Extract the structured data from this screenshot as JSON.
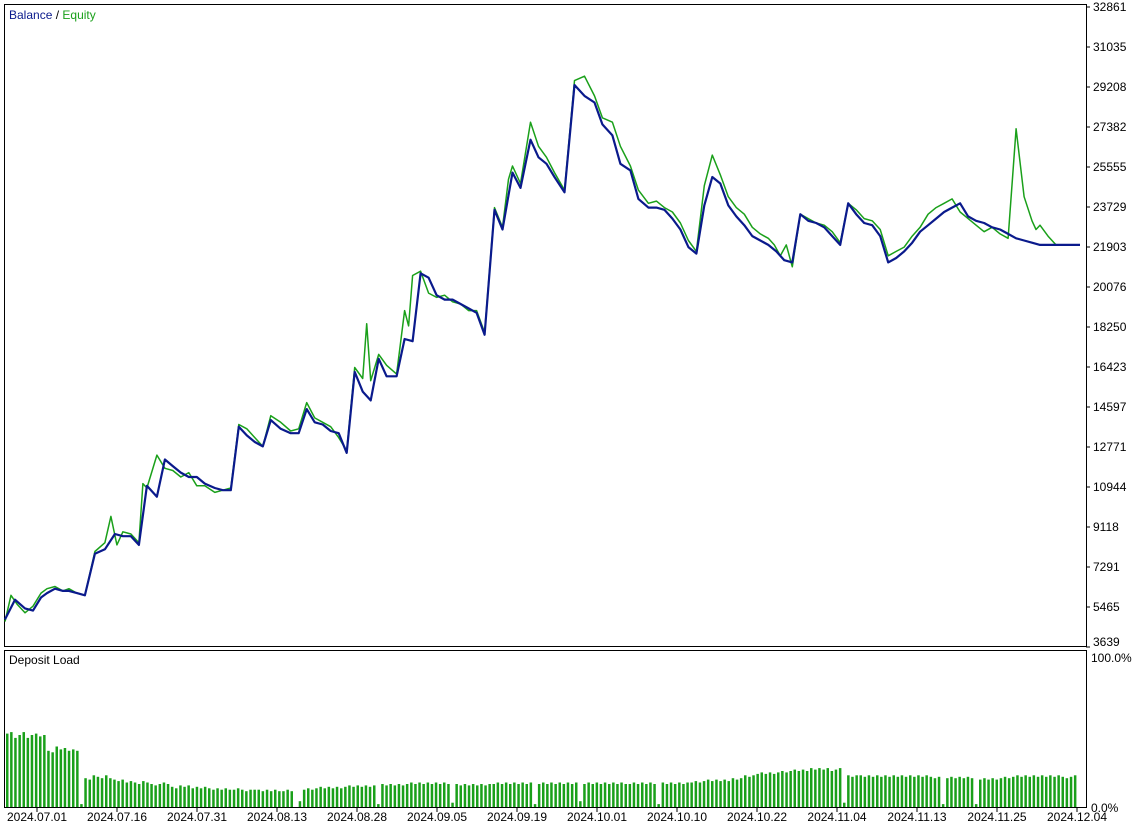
{
  "legend": {
    "balance_label": "Balance",
    "separator": " / ",
    "equity_label": "Equity"
  },
  "colors": {
    "balance": "#0a1a8c",
    "equity": "#1aa01a",
    "deposit_bars": "#1aa01a",
    "frame": "#000000",
    "text": "#000000",
    "background": "#ffffff"
  },
  "main_chart": {
    "y_ticks": [
      "32861",
      "31035",
      "29208",
      "27382",
      "25555",
      "23729",
      "21903",
      "20076",
      "18250",
      "16423",
      "14597",
      "12771",
      "10944",
      "9118",
      "7291",
      "5465",
      "3639"
    ],
    "ylim": [
      3639,
      32861
    ]
  },
  "deposit_panel": {
    "title": "Deposit Load",
    "y_ticks": [
      "100.0%",
      "0.0%"
    ]
  },
  "x_ticks": [
    "2024.07.01",
    "2024.07.16",
    "2024.07.31",
    "2024.08.13",
    "2024.08.28",
    "2024.09.05",
    "2024.09.19",
    "2024.10.01",
    "2024.10.10",
    "2024.10.22",
    "2024.11.04",
    "2024.11.13",
    "2024.11.25",
    "2024.12.04"
  ],
  "chart_data": [
    {
      "type": "line",
      "title": "",
      "xlabel": "",
      "ylabel": "",
      "ylim": [
        3639,
        32861
      ],
      "grid": false,
      "legend_placement": "top-left",
      "x_index_range": [
        0,
        1076
      ],
      "series": [
        {
          "name": "Balance",
          "x": [
            0,
            10,
            20,
            28,
            36,
            42,
            50,
            58,
            64,
            72,
            80,
            90,
            100,
            110,
            118,
            126,
            134,
            142,
            152,
            160,
            168,
            176,
            184,
            192,
            200,
            210,
            218,
            226,
            234,
            242,
            250,
            258,
            266,
            276,
            286,
            294,
            302,
            310,
            318,
            326,
            334,
            342,
            350,
            358,
            366,
            374,
            382,
            392,
            400,
            408,
            416,
            424,
            432,
            440,
            448,
            456,
            464,
            472,
            480,
            490,
            498,
            508,
            516,
            526,
            534,
            542,
            550,
            560,
            570,
            580,
            590,
            598,
            608,
            616,
            626,
            634,
            644,
            652,
            660,
            668,
            676,
            684,
            692,
            700,
            708,
            716,
            724,
            732,
            740,
            748,
            756,
            764,
            772,
            780,
            788,
            796,
            804,
            812,
            820,
            828,
            836,
            844,
            852,
            860,
            868,
            876,
            884,
            892,
            900,
            908,
            916,
            924,
            932,
            940,
            948,
            956,
            964,
            972,
            980,
            988,
            996,
            1004,
            1012,
            1020,
            1028,
            1036,
            1044,
            1052,
            1060,
            1068,
            1076
          ],
          "values": [
            4900,
            5800,
            5400,
            5300,
            5900,
            6100,
            6300,
            6200,
            6200,
            6100,
            6000,
            7900,
            8100,
            8800,
            8700,
            8700,
            8300,
            11000,
            10500,
            12200,
            11900,
            11600,
            11400,
            11400,
            11100,
            10900,
            10800,
            10800,
            13700,
            13300,
            13000,
            12800,
            14000,
            13600,
            13400,
            13400,
            14500,
            13900,
            13800,
            13500,
            13400,
            12500,
            16200,
            15300,
            14900,
            16800,
            16000,
            16000,
            17700,
            17600,
            20700,
            20500,
            19700,
            19500,
            19500,
            19300,
            19100,
            18900,
            17900,
            23600,
            22700,
            25300,
            24600,
            26800,
            26000,
            25700,
            25100,
            24400,
            29300,
            28800,
            28500,
            27500,
            27000,
            25700,
            25400,
            24100,
            23700,
            23700,
            23600,
            23200,
            22700,
            21900,
            21600,
            23800,
            25100,
            24800,
            23800,
            23300,
            22900,
            22400,
            22200,
            22000,
            21700,
            21300,
            21200,
            23400,
            23100,
            23000,
            22800,
            22400,
            22000,
            23900,
            23400,
            23000,
            22900,
            22400,
            21200,
            21400,
            21700,
            22100,
            22600,
            22900,
            23200,
            23500,
            23700,
            23900,
            23300,
            23100,
            23000,
            22800,
            22700,
            22500,
            22300,
            22200,
            22100,
            22000,
            22000,
            22000,
            22000,
            22000,
            22000
          ]
        },
        {
          "name": "Equity",
          "x": [
            0,
            6,
            12,
            20,
            28,
            36,
            42,
            50,
            58,
            64,
            72,
            80,
            90,
            100,
            106,
            112,
            118,
            126,
            134,
            138,
            142,
            152,
            160,
            168,
            176,
            184,
            192,
            200,
            210,
            218,
            226,
            234,
            242,
            250,
            258,
            266,
            276,
            286,
            294,
            302,
            310,
            318,
            326,
            334,
            342,
            350,
            358,
            362,
            366,
            374,
            382,
            392,
            400,
            404,
            408,
            416,
            424,
            432,
            440,
            448,
            456,
            464,
            472,
            480,
            490,
            498,
            504,
            508,
            516,
            526,
            534,
            542,
            550,
            560,
            570,
            580,
            590,
            598,
            608,
            616,
            626,
            634,
            644,
            652,
            660,
            668,
            676,
            684,
            692,
            700,
            708,
            716,
            724,
            732,
            740,
            748,
            756,
            764,
            770,
            776,
            782,
            788,
            796,
            804,
            812,
            820,
            828,
            836,
            844,
            852,
            860,
            868,
            876,
            884,
            892,
            900,
            908,
            916,
            924,
            932,
            940,
            948,
            956,
            964,
            972,
            980,
            988,
            996,
            1004,
            1012,
            1020,
            1028,
            1032,
            1036,
            1044,
            1052,
            1060,
            1068,
            1076
          ],
          "values": [
            4800,
            6000,
            5600,
            5200,
            5500,
            6100,
            6300,
            6400,
            6200,
            6300,
            6100,
            6000,
            8000,
            8400,
            9600,
            8300,
            8900,
            8800,
            8400,
            11100,
            10900,
            12400,
            11800,
            11700,
            11400,
            11600,
            11000,
            11000,
            10700,
            10800,
            10900,
            13800,
            13600,
            13200,
            12800,
            14200,
            13900,
            13500,
            13600,
            14800,
            14100,
            13900,
            13700,
            13200,
            12600,
            16400,
            15900,
            18400,
            15800,
            17000,
            16500,
            16100,
            19000,
            18300,
            20600,
            20800,
            19800,
            19600,
            19700,
            19400,
            19300,
            19000,
            19000,
            18000,
            23700,
            22800,
            25000,
            25600,
            24800,
            27600,
            26500,
            26000,
            25300,
            24500,
            29500,
            29700,
            28800,
            27800,
            27600,
            26500,
            25600,
            24500,
            23900,
            24000,
            23700,
            23500,
            23000,
            22200,
            21700,
            24700,
            26100,
            25200,
            24200,
            23700,
            23400,
            22800,
            22500,
            22300,
            22000,
            21500,
            22000,
            21000,
            23400,
            23200,
            23000,
            22900,
            22600,
            22100,
            23900,
            23600,
            23200,
            23100,
            22700,
            21500,
            21700,
            21900,
            22400,
            22800,
            23400,
            23700,
            23900,
            24100,
            23500,
            23200,
            22900,
            22600,
            22800,
            22500,
            22300,
            27300,
            24200,
            23100,
            22700,
            22900,
            22400,
            22000,
            22000,
            22000,
            22000
          ]
        }
      ]
    },
    {
      "type": "bar",
      "title": "Deposit Load",
      "xlabel": "",
      "ylabel": "",
      "ylim": [
        0,
        100
      ],
      "grid": false,
      "values": [
        51,
        52,
        48,
        50,
        52,
        48,
        50,
        51,
        49,
        50,
        39,
        38,
        42,
        40,
        41,
        39,
        40,
        39,
        2,
        20,
        19,
        22,
        21,
        20,
        22,
        20,
        19,
        18,
        19,
        17,
        18,
        17,
        16,
        18,
        17,
        16,
        15,
        16,
        17,
        16,
        14,
        13,
        15,
        14,
        15,
        13,
        14,
        13,
        14,
        13,
        12,
        13,
        12,
        13,
        12,
        12,
        13,
        12,
        11,
        12,
        12,
        12,
        11,
        12,
        11,
        12,
        11,
        11,
        12,
        11,
        0,
        4,
        12,
        13,
        12,
        13,
        14,
        13,
        14,
        13,
        14,
        13,
        14,
        15,
        14,
        15,
        14,
        15,
        14,
        15,
        2,
        16,
        15,
        16,
        15,
        16,
        15,
        16,
        17,
        16,
        17,
        16,
        17,
        16,
        17,
        16,
        17,
        16,
        3,
        16,
        15,
        16,
        15,
        16,
        15,
        16,
        15,
        16,
        16,
        17,
        16,
        17,
        16,
        17,
        16,
        17,
        16,
        17,
        2,
        16,
        17,
        16,
        17,
        16,
        17,
        16,
        17,
        16,
        17,
        4,
        16,
        17,
        16,
        17,
        16,
        17,
        16,
        17,
        16,
        17,
        16,
        16,
        17,
        16,
        17,
        16,
        17,
        16,
        2,
        17,
        16,
        17,
        16,
        17,
        16,
        17,
        17,
        18,
        17,
        18,
        19,
        18,
        19,
        18,
        19,
        18,
        20,
        19,
        20,
        22,
        21,
        22,
        23,
        24,
        23,
        24,
        23,
        24,
        25,
        24,
        25,
        26,
        25,
        26,
        25,
        27,
        26,
        27,
        26,
        27,
        25,
        26,
        27,
        3,
        22,
        21,
        22,
        22,
        21,
        22,
        21,
        22,
        21,
        22,
        21,
        22,
        21,
        22,
        21,
        22,
        21,
        22,
        21,
        22,
        21,
        20,
        21,
        2,
        20,
        21,
        20,
        21,
        20,
        21,
        20,
        2,
        19,
        20,
        19,
        20,
        19,
        20,
        21,
        20,
        21,
        22,
        21,
        22,
        21,
        22,
        21,
        22,
        21,
        22,
        21,
        22,
        21,
        20,
        21,
        22
      ]
    }
  ]
}
